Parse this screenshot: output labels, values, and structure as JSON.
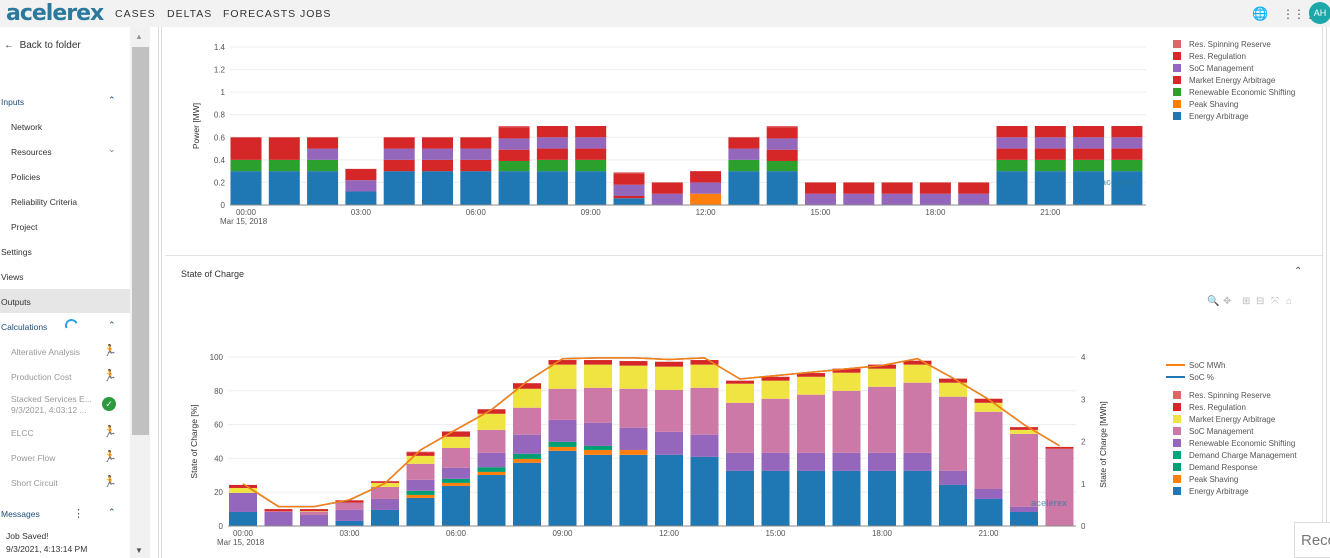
{
  "header": {
    "logo": "acelerex",
    "nav": [
      "CASES",
      "DELTAS",
      "FORECASTS",
      "JOBS"
    ],
    "icons": [
      "globe-icon",
      "apps-grid-icon"
    ],
    "avatar": "AH"
  },
  "sidebar": {
    "back": "Back to folder",
    "inputs": "Inputs",
    "input_items": [
      "Network",
      "Resources",
      "Policies",
      "Reliability Criteria",
      "Project"
    ],
    "settings": "Settings",
    "views": "Views",
    "outputs": "Outputs",
    "calculations": "Calculations",
    "calc_items": [
      "Alterative Analysis",
      "Production Cost",
      "Stacked Services E...",
      "ELCC",
      "Power Flow",
      "Short Circuit"
    ],
    "calc_subtitle": "9/3/2021, 4:03:12 ...",
    "messages": "Messages",
    "message_title": "Job Saved!",
    "message_time": "9/3/2021, 4:13:14 PM"
  },
  "soc_panel": {
    "title": "State of Charge"
  },
  "recommend_stub": "Recc",
  "chart_data": [
    {
      "type": "bar",
      "stacked": true,
      "ylabel": "Power [MW]",
      "ylim": [
        0,
        1.4
      ],
      "yticks": [
        "0",
        "0.2",
        "0.4",
        "0.6",
        "0.8",
        "1",
        "1.2",
        "1.4"
      ],
      "xticks": [
        "00:00",
        "03:00",
        "06:00",
        "09:00",
        "12:00",
        "15:00",
        "18:00",
        "21:00"
      ],
      "xdate": "Mar 15, 2018",
      "x": [
        "00:00",
        "01:00",
        "02:00",
        "03:00",
        "04:00",
        "05:00",
        "06:00",
        "07:00",
        "08:00",
        "09:00",
        "10:00",
        "11:00",
        "12:00",
        "13:00",
        "14:00",
        "15:00",
        "16:00",
        "17:00",
        "18:00",
        "19:00",
        "20:00",
        "21:00",
        "22:00",
        "23:00"
      ],
      "grid": true,
      "legend_position": "right",
      "series": [
        {
          "name": "Energy Arbitrage",
          "color": "#1f77b4",
          "values": [
            0.3,
            0.3,
            0.3,
            0.12,
            0.3,
            0.3,
            0.3,
            0.3,
            0.3,
            0.3,
            0.06,
            0,
            0,
            0.3,
            0.3,
            0,
            0,
            0,
            0,
            0,
            0.3,
            0.3,
            0.3,
            0.3
          ]
        },
        {
          "name": "Peak Shaving",
          "color": "#ff7f0e",
          "values": [
            0,
            0,
            0,
            0,
            0,
            0,
            0,
            0,
            0,
            0,
            0,
            0,
            0.1,
            0,
            0,
            0,
            0,
            0,
            0,
            0,
            0,
            0,
            0,
            0
          ]
        },
        {
          "name": "Renewable Economic Shifting",
          "color": "#2ca02c",
          "values": [
            0.1,
            0.1,
            0.1,
            0,
            0,
            0,
            0,
            0.09,
            0.1,
            0.1,
            0,
            0,
            0,
            0.1,
            0.09,
            0,
            0,
            0,
            0,
            0,
            0.1,
            0.1,
            0.1,
            0.1
          ]
        },
        {
          "name": "Market Energy Arbitrage",
          "color": "#d62728",
          "values": [
            0,
            0,
            0,
            0,
            0.1,
            0.1,
            0.1,
            0.1,
            0.1,
            0.1,
            0.02,
            0,
            0,
            0,
            0.1,
            0,
            0,
            0,
            0,
            0,
            0.1,
            0.1,
            0.1,
            0.1
          ]
        },
        {
          "name": "SoC Management",
          "color": "#9467bd",
          "values": [
            0,
            0,
            0.1,
            0.1,
            0.1,
            0.1,
            0.1,
            0.1,
            0.1,
            0.1,
            0.1,
            0.1,
            0.1,
            0.1,
            0.1,
            0.1,
            0.1,
            0.1,
            0.1,
            0.1,
            0.1,
            0.1,
            0.1,
            0.1
          ]
        },
        {
          "name": "Res. Regulation",
          "color": "#d62728",
          "values": [
            0.2,
            0.2,
            0.1,
            0.1,
            0.1,
            0.1,
            0.1,
            0.1,
            0.1,
            0.1,
            0.1,
            0.1,
            0.1,
            0.1,
            0.1,
            0.1,
            0.1,
            0.1,
            0.1,
            0.1,
            0.1,
            0.1,
            0.1,
            0.1
          ]
        },
        {
          "name": "Res. Spinning Reserve",
          "color": "#e06666",
          "values": [
            0,
            0,
            0,
            0,
            0,
            0,
            0,
            0.01,
            0,
            0,
            0.01,
            0,
            0,
            0,
            0.01,
            0,
            0,
            0,
            0,
            0,
            0,
            0,
            0,
            0
          ]
        }
      ]
    },
    {
      "type": "bar",
      "stacked": true,
      "title": "State of Charge",
      "ylabel": "State of Charge [%]",
      "y2label": "State of Charge [MWh]",
      "ylim": [
        0,
        100
      ],
      "y2lim": [
        0,
        4
      ],
      "yticks": [
        "0",
        "20",
        "40",
        "60",
        "80",
        "100"
      ],
      "y2ticks": [
        "0",
        "1",
        "2",
        "3",
        "4"
      ],
      "xticks": [
        "00:00",
        "03:00",
        "06:00",
        "09:00",
        "12:00",
        "15:00",
        "18:00",
        "21:00"
      ],
      "xdate": "Mar 15, 2018",
      "x": [
        "00:00",
        "01:00",
        "02:00",
        "03:00",
        "04:00",
        "05:00",
        "06:00",
        "07:00",
        "08:00",
        "09:00",
        "10:00",
        "11:00",
        "12:00",
        "13:00",
        "14:00",
        "15:00",
        "16:00",
        "17:00",
        "18:00",
        "19:00",
        "20:00",
        "21:00",
        "22:00",
        "23:00"
      ],
      "grid": true,
      "legend_position": "right",
      "lines": [
        {
          "name": "SoC MWh",
          "color": "#ff7f0e",
          "axis": "right",
          "values": [
            1.0,
            0.46,
            0.46,
            0.62,
            1.01,
            1.8,
            2.28,
            2.75,
            3.42,
            3.96,
            3.98,
            3.98,
            3.94,
            3.98,
            3.48,
            3.56,
            3.64,
            3.72,
            3.8,
            3.96,
            3.5,
            3.0,
            2.4,
            1.9
          ]
        },
        {
          "name": "SoC %",
          "color": "#1f77b4",
          "axis": "left",
          "values": [
            24.9,
            11.5,
            11.5,
            15.4,
            25.3,
            45,
            57,
            68.8,
            85.6,
            99,
            99.5,
            99.5,
            98.5,
            99.5,
            87,
            89,
            91,
            93,
            95,
            99,
            87.5,
            75,
            60,
            47.5
          ]
        }
      ],
      "series": [
        {
          "name": "Energy Arbitrage",
          "color": "#1f77b4",
          "values": [
            8.3,
            0,
            0,
            3,
            9.5,
            16.6,
            23.7,
            30.2,
            37.4,
            44.5,
            42.1,
            42.1,
            42.1,
            40.9,
            32.6,
            32.6,
            32.6,
            32.6,
            32.6,
            32.6,
            24.3,
            16,
            8.3,
            0
          ]
        },
        {
          "name": "Peak Shaving",
          "color": "#ff7f0e",
          "values": [
            0,
            0,
            0,
            0,
            0,
            1.8,
            1.8,
            1.8,
            2.3,
            2.3,
            2.9,
            2.9,
            0,
            0,
            0,
            0,
            0,
            0,
            0,
            0,
            0,
            0,
            0,
            0
          ]
        },
        {
          "name": "Demand Response",
          "color": "#009e73",
          "values": [
            0,
            0,
            0,
            0,
            0,
            2.4,
            2.4,
            2.8,
            3,
            3,
            2.4,
            0,
            0,
            0,
            0,
            0,
            0,
            0,
            0,
            0,
            0,
            0,
            0,
            0
          ]
        },
        {
          "name": "Demand Charge Management",
          "color": "#00a67c",
          "values": [
            0,
            0,
            0,
            0,
            0,
            0,
            0,
            0,
            0,
            0,
            0,
            0,
            0,
            0,
            0,
            0,
            0,
            0,
            0,
            0,
            0,
            0,
            0,
            0
          ]
        },
        {
          "name": "Renewable Economic Shifting",
          "color": "#9467bd",
          "values": [
            11.3,
            8.3,
            6.5,
            6.5,
            6.5,
            6.5,
            6.5,
            8.5,
            11.3,
            13,
            13.6,
            13.1,
            13.6,
            13.1,
            10.7,
            10.7,
            10.7,
            10.7,
            10.7,
            10.7,
            8.3,
            5.9,
            3,
            0
          ]
        },
        {
          "name": "SoC Management",
          "color": "#cc79a7",
          "values": [
            0,
            0.4,
            2,
            4.3,
            7.1,
            9.5,
            11.8,
            13.6,
            16,
            18.4,
            20.8,
            23.1,
            24.9,
            27.8,
            29.6,
            32,
            34.4,
            36.7,
            39.1,
            41.5,
            43.9,
            45.7,
            43.2,
            45.7
          ]
        },
        {
          "name": "Market Energy Arbitrage",
          "color": "#f0e442",
          "values": [
            2.9,
            0,
            0.3,
            0,
            2.4,
            4.7,
            6.6,
            9.5,
            11.2,
            14.3,
            13.7,
            13.7,
            13.7,
            13.7,
            11.3,
            10.7,
            10.6,
            10.7,
            10.7,
            10.7,
            8.3,
            5.3,
            2.4,
            0
          ]
        },
        {
          "name": "Res. Regulation",
          "color": "#d62728",
          "values": [
            1.8,
            1.3,
            1.2,
            1.4,
            1,
            2.2,
            3,
            2.5,
            3.1,
            2.7,
            2.7,
            2.7,
            2.9,
            2.7,
            1.8,
            2.3,
            2.2,
            2.4,
            2.4,
            2.3,
            2.4,
            2.4,
            1.6,
            1.1
          ]
        },
        {
          "name": "Res. Spinning Reserve",
          "color": "#e06666",
          "values": [
            0,
            0,
            0,
            0,
            0,
            0.3,
            0.3,
            0.3,
            0.3,
            0,
            0,
            0,
            0,
            0,
            0,
            0,
            0,
            0,
            0,
            0,
            0,
            0,
            0,
            0
          ]
        }
      ]
    }
  ]
}
